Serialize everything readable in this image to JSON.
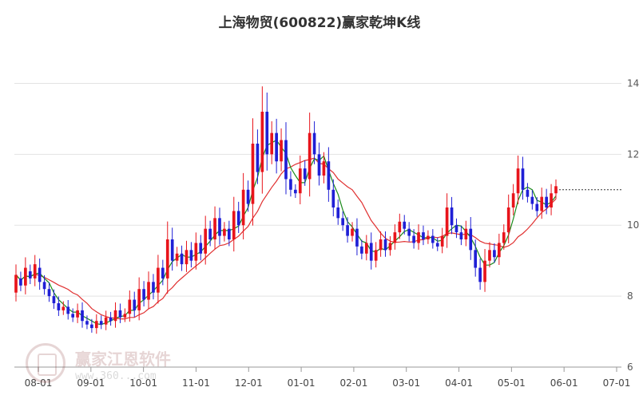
{
  "chart_data": {
    "type": "candlestick",
    "title": "上海物贸(600822)赢家乾坤K线",
    "x_ticks": [
      "08-01",
      "09-01",
      "10-01",
      "11-01",
      "12-01",
      "01-01",
      "02-01",
      "03-01",
      "04-01",
      "05-01",
      "06-01",
      "07-01"
    ],
    "y_ticks": [
      6,
      8,
      10,
      12,
      14
    ],
    "ylim": [
      6,
      15
    ],
    "grid": "horizontal",
    "colors": {
      "up": "#e8141b",
      "down": "#1f1fd6",
      "ma_short": "#1a8a1a",
      "ma_long": "#e03030",
      "last_price_line": "#333333"
    },
    "candles": [
      [
        8.1,
        8.6
      ],
      [
        8.5,
        8.3
      ],
      [
        8.3,
        8.8
      ],
      [
        8.7,
        8.5
      ],
      [
        8.5,
        8.9
      ],
      [
        8.8,
        8.4
      ],
      [
        8.4,
        8.2
      ],
      [
        8.2,
        8.0
      ],
      [
        8.0,
        7.8
      ],
      [
        7.8,
        7.6
      ],
      [
        7.6,
        7.7
      ],
      [
        7.7,
        7.5
      ],
      [
        7.5,
        7.4
      ],
      [
        7.4,
        7.6
      ],
      [
        7.6,
        7.3
      ],
      [
        7.3,
        7.2
      ],
      [
        7.2,
        7.1
      ],
      [
        7.1,
        7.3
      ],
      [
        7.3,
        7.2
      ],
      [
        7.2,
        7.4
      ],
      [
        7.4,
        7.3
      ],
      [
        7.3,
        7.6
      ],
      [
        7.6,
        7.4
      ],
      [
        7.4,
        7.5
      ],
      [
        7.5,
        7.9
      ],
      [
        7.9,
        7.6
      ],
      [
        7.6,
        8.2
      ],
      [
        8.2,
        7.9
      ],
      [
        7.9,
        8.4
      ],
      [
        8.4,
        8.1
      ],
      [
        8.1,
        8.8
      ],
      [
        8.8,
        8.5
      ],
      [
        8.5,
        9.6
      ],
      [
        9.6,
        9.0
      ],
      [
        9.0,
        9.2
      ],
      [
        9.2,
        8.9
      ],
      [
        8.9,
        9.3
      ],
      [
        9.3,
        9.0
      ],
      [
        9.0,
        9.5
      ],
      [
        9.5,
        9.2
      ],
      [
        9.2,
        9.9
      ],
      [
        9.9,
        9.6
      ],
      [
        9.6,
        10.2
      ],
      [
        10.2,
        9.7
      ],
      [
        9.7,
        9.9
      ],
      [
        9.9,
        9.6
      ],
      [
        9.6,
        10.4
      ],
      [
        10.4,
        10.0
      ],
      [
        10.0,
        11.0
      ],
      [
        11.0,
        10.6
      ],
      [
        10.6,
        12.3
      ],
      [
        12.3,
        11.5
      ],
      [
        11.5,
        13.2
      ],
      [
        13.2,
        12.0
      ],
      [
        12.0,
        12.6
      ],
      [
        12.6,
        11.8
      ],
      [
        11.8,
        12.4
      ],
      [
        12.4,
        11.3
      ],
      [
        11.3,
        11.0
      ],
      [
        11.0,
        10.9
      ],
      [
        10.9,
        11.6
      ],
      [
        11.6,
        11.3
      ],
      [
        11.3,
        12.6
      ],
      [
        12.6,
        12.0
      ],
      [
        12.0,
        11.4
      ],
      [
        11.4,
        11.8
      ],
      [
        11.8,
        11.0
      ],
      [
        11.0,
        10.5
      ],
      [
        10.5,
        10.2
      ],
      [
        10.2,
        10.0
      ],
      [
        10.0,
        9.7
      ],
      [
        9.7,
        9.9
      ],
      [
        9.9,
        9.4
      ],
      [
        9.4,
        9.2
      ],
      [
        9.2,
        9.5
      ],
      [
        9.5,
        9.0
      ],
      [
        9.0,
        9.3
      ],
      [
        9.3,
        9.6
      ],
      [
        9.6,
        9.3
      ],
      [
        9.3,
        9.5
      ],
      [
        9.5,
        9.8
      ],
      [
        9.8,
        10.1
      ],
      [
        10.1,
        9.9
      ],
      [
        9.9,
        9.7
      ],
      [
        9.7,
        9.5
      ],
      [
        9.5,
        9.8
      ],
      [
        9.8,
        9.6
      ],
      [
        9.6,
        9.7
      ],
      [
        9.7,
        9.5
      ],
      [
        9.5,
        9.4
      ],
      [
        9.4,
        9.7
      ],
      [
        9.7,
        10.5
      ],
      [
        10.5,
        10.0
      ],
      [
        10.0,
        9.8
      ],
      [
        9.8,
        9.6
      ],
      [
        9.6,
        9.9
      ],
      [
        9.9,
        9.3
      ],
      [
        9.3,
        8.8
      ],
      [
        8.8,
        8.4
      ],
      [
        8.4,
        9.0
      ],
      [
        9.0,
        9.3
      ],
      [
        9.3,
        9.1
      ],
      [
        9.1,
        9.5
      ],
      [
        9.5,
        9.8
      ],
      [
        9.8,
        10.5
      ],
      [
        10.5,
        10.9
      ],
      [
        10.9,
        11.6
      ],
      [
        11.6,
        11.0
      ],
      [
        11.0,
        10.8
      ],
      [
        10.8,
        10.6
      ],
      [
        10.6,
        10.4
      ],
      [
        10.4,
        10.8
      ],
      [
        10.8,
        10.5
      ],
      [
        10.5,
        10.9
      ],
      [
        10.9,
        11.1
      ]
    ],
    "last_price_line_value": 11.0
  }
}
